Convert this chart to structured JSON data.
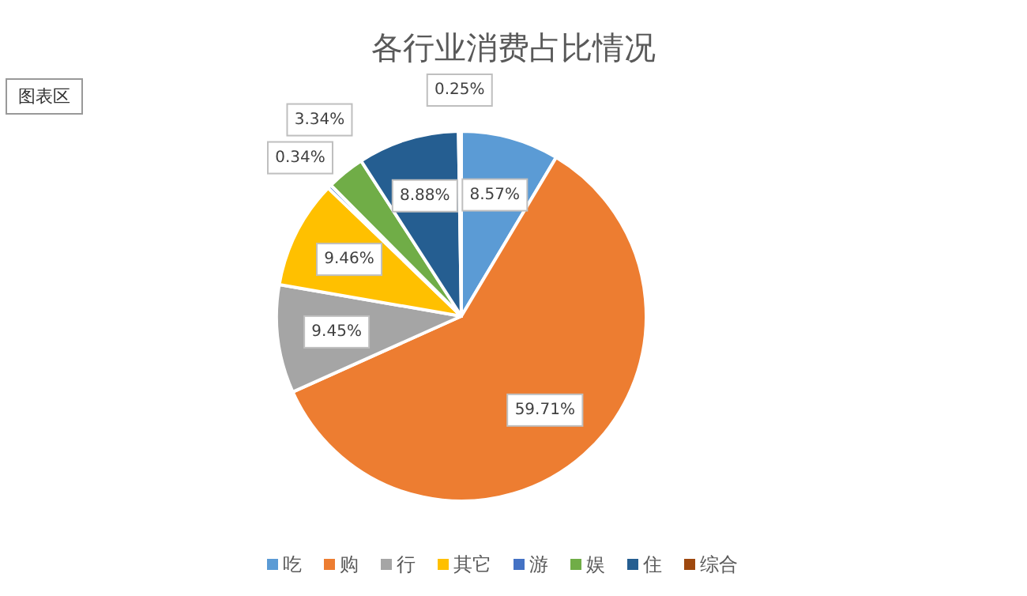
{
  "chart_data": {
    "type": "pie",
    "title": "各行业消费占比情况",
    "categories": [
      "吃",
      "购",
      "行",
      "其它",
      "游",
      "娱",
      "住",
      "综合"
    ],
    "values": [
      8.57,
      59.71,
      9.45,
      9.46,
      0.34,
      3.34,
      8.88,
      0.25
    ],
    "colors": [
      "#5b9bd5",
      "#ed7d31",
      "#a5a5a5",
      "#ffc000",
      "#4472c4",
      "#70ad47",
      "#255e91",
      "#9e480e"
    ],
    "value_labels": [
      "8.57%",
      "59.71%",
      "9.45%",
      "9.46%",
      "0.34%",
      "3.34%",
      "8.88%",
      "0.25%"
    ],
    "legend": "bottom",
    "annotations": [
      "图表区"
    ]
  }
}
